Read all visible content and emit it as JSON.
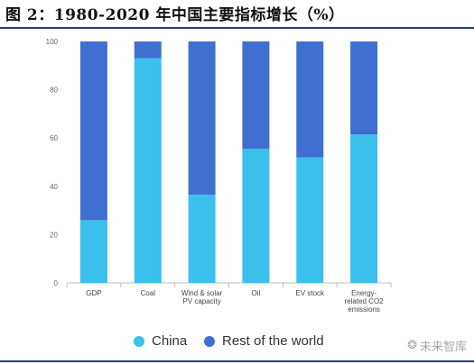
{
  "title": "图 2：1980-2020 年中国主要指标增长（%）",
  "chart_data": {
    "type": "bar",
    "stacked": true,
    "percent": true,
    "categories": [
      [
        "GDP"
      ],
      [
        "Coal"
      ],
      [
        "Wind & solar",
        "PV capacity"
      ],
      [
        "Oil"
      ],
      [
        "EV stock"
      ],
      [
        "Energy-",
        "related CO2",
        "emissions"
      ]
    ],
    "series": [
      {
        "name": "China",
        "values": [
          26,
          93,
          36.5,
          55.5,
          52,
          61.5
        ],
        "color": "#3ac0ea"
      },
      {
        "name": "Rest of the world",
        "values": [
          74,
          7,
          63.5,
          44.5,
          48,
          38.5
        ],
        "color": "#3f6fd1"
      }
    ],
    "ylim": [
      0,
      100
    ],
    "yticks": [
      0,
      20,
      40,
      60,
      80,
      100
    ],
    "grid": false,
    "legend_position": "bottom"
  },
  "legend": [
    {
      "label": "China",
      "color": "#3ac0ea"
    },
    {
      "label": "Rest of the world",
      "color": "#3f6fd1"
    }
  ],
  "watermark": {
    "text": "未来智库",
    "icon": "wechat-icon"
  }
}
